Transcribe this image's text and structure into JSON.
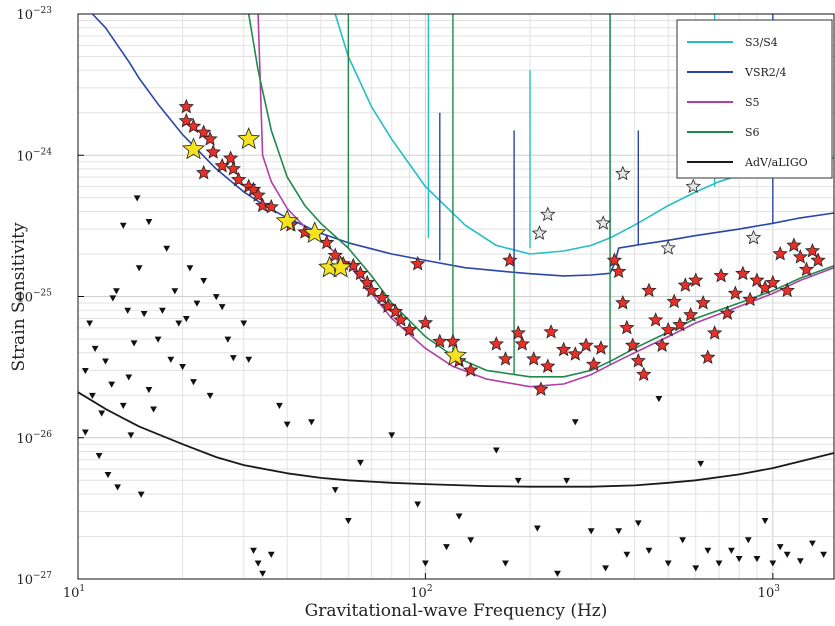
{
  "chart_data": {
    "type": "line",
    "title": "",
    "xlabel": "Gravitational-wave Frequency (Hz)",
    "ylabel": "Strain Sensitivity",
    "xscale": "log",
    "yscale": "log",
    "xlim": [
      10,
      1500
    ],
    "ylim": [
      1e-27,
      1e-23
    ],
    "grid": true,
    "legend_position": "top-right",
    "x_ticks": [
      {
        "value": 10,
        "base": "10",
        "exp": "1"
      },
      {
        "value": 100,
        "base": "10",
        "exp": "2"
      },
      {
        "value": 1000,
        "base": "10",
        "exp": "3"
      }
    ],
    "y_ticks": [
      {
        "value": 1e-27,
        "base": "10",
        "exp": "−27"
      },
      {
        "value": 1e-26,
        "base": "10",
        "exp": "−26"
      },
      {
        "value": 1e-25,
        "base": "10",
        "exp": "−25"
      },
      {
        "value": 1e-24,
        "base": "10",
        "exp": "−24"
      },
      {
        "value": 1e-23,
        "base": "10",
        "exp": "−23"
      }
    ],
    "series": [
      {
        "name": "S3/S4",
        "color": "#22bfc4",
        "x": [
          55,
          60,
          70,
          80,
          100,
          130,
          160,
          200,
          250,
          300,
          340,
          400,
          500,
          600,
          700,
          800,
          1000,
          1200,
          1500
        ],
        "y": [
          1e-23,
          5e-24,
          2.2e-24,
          1.3e-24,
          6e-25,
          3.2e-25,
          2.3e-25,
          2e-25,
          2.1e-25,
          2.3e-25,
          2.6e-25,
          3.2e-25,
          4.4e-25,
          5.5e-25,
          6.5e-25,
          7.2e-25,
          8.2e-25,
          9e-25,
          9.6e-25
        ],
        "lines": [
          {
            "x": 102,
            "y0": 2.6e-25,
            "y1": 1e-23
          },
          {
            "x": 200,
            "y0": 2.2e-25,
            "y1": 4e-24
          },
          {
            "x": 340,
            "y0": 2.6e-25,
            "y1": 1e-23
          },
          {
            "x": 680,
            "y0": 6e-25,
            "y1": 1e-23
          }
        ]
      },
      {
        "name": "VSR2/4",
        "color": "#2a46a8",
        "x": [
          11,
          12,
          13,
          14,
          15,
          17,
          20,
          25,
          30,
          35,
          40,
          50,
          60,
          80,
          100,
          130,
          170,
          200,
          250,
          300,
          340,
          350,
          360,
          400,
          500,
          600,
          800,
          1000,
          1200,
          1500
        ],
        "y": [
          1e-23,
          8e-24,
          6e-24,
          4.6e-24,
          3.5e-24,
          2.3e-24,
          1.4e-24,
          8e-25,
          5.5e-25,
          4.3e-25,
          3.6e-25,
          2.8e-25,
          2.4e-25,
          2e-25,
          1.8e-25,
          1.6e-25,
          1.5e-25,
          1.45e-25,
          1.4e-25,
          1.42e-25,
          1.46e-25,
          1.7e-25,
          2.2e-25,
          2.3e-25,
          2.5e-25,
          2.7e-25,
          3e-25,
          3.3e-25,
          3.6e-25,
          3.9e-25
        ],
        "lines": [
          {
            "x": 110,
            "y0": 1.8e-25,
            "y1": 2e-24
          },
          {
            "x": 180,
            "y0": 1.5e-25,
            "y1": 1.5e-24
          },
          {
            "x": 410,
            "y0": 2.3e-25,
            "y1": 1.5e-24
          },
          {
            "x": 1000,
            "y0": 3.3e-25,
            "y1": 1e-23
          }
        ]
      },
      {
        "name": "S5",
        "color": "#b040a8",
        "x": [
          33,
          34,
          36,
          40,
          45,
          50,
          60,
          70,
          80,
          100,
          120,
          150,
          200,
          250,
          300,
          350,
          400,
          500,
          600,
          800,
          1000,
          1200,
          1500
        ],
        "y": [
          1e-23,
          1e-24,
          6.5e-25,
          4.2e-25,
          3.1e-25,
          2.5e-25,
          1.7e-25,
          1.05e-25,
          7e-26,
          4.3e-26,
          3.2e-26,
          2.6e-26,
          2.3e-26,
          2.4e-26,
          2.8e-26,
          3.4e-26,
          4e-26,
          5.2e-26,
          6.5e-26,
          8.5e-26,
          1.05e-25,
          1.3e-25,
          1.6e-25
        ],
        "lines": []
      },
      {
        "name": "S6",
        "color": "#1f8a4c",
        "x": [
          31,
          33,
          36,
          40,
          45,
          50,
          60,
          70,
          80,
          100,
          120,
          150,
          200,
          250,
          300,
          350,
          400,
          500,
          600,
          800,
          1000,
          1200,
          1500
        ],
        "y": [
          1e-23,
          4e-24,
          1.5e-24,
          7e-25,
          4.4e-25,
          3.3e-25,
          2.2e-25,
          1.4e-25,
          9e-26,
          5.2e-26,
          3.8e-26,
          3e-26,
          2.7e-26,
          2.7e-26,
          3e-26,
          3.6e-26,
          4.3e-26,
          5.6e-26,
          7e-26,
          9e-26,
          1.1e-25,
          1.35e-25,
          1.65e-25
        ],
        "lines": [
          {
            "x": 60,
            "y0": 2.2e-25,
            "y1": 1e-23
          },
          {
            "x": 120,
            "y0": 3.8e-26,
            "y1": 1e-23
          },
          {
            "x": 180,
            "y0": 2.8e-26,
            "y1": 1.6e-25
          },
          {
            "x": 340,
            "y0": 3.3e-26,
            "y1": 1e-23
          }
        ]
      },
      {
        "name": "AdV/aLIGO",
        "color": "#1a1a1a",
        "x": [
          10,
          12,
          15,
          20,
          25,
          30,
          40,
          50,
          60,
          80,
          100,
          150,
          200,
          300,
          400,
          500,
          600,
          800,
          1000,
          1200,
          1500
        ],
        "y": [
          2.1e-26,
          1.6e-26,
          1.2e-26,
          9e-27,
          7.3e-27,
          6.4e-27,
          5.6e-27,
          5.2e-27,
          5e-27,
          4.8e-27,
          4.7e-27,
          4.55e-27,
          4.5e-27,
          4.5e-27,
          4.6e-27,
          4.8e-27,
          5e-27,
          5.5e-27,
          6.1e-27,
          6.8e-27,
          7.8e-27
        ],
        "lines": []
      }
    ],
    "markers": {
      "red_stars": [
        [
          20.5,
          2.2e-24
        ],
        [
          20.5,
          1.75e-24
        ],
        [
          21.5,
          1.6e-24
        ],
        [
          23,
          1.45e-24
        ],
        [
          24,
          1.3e-24
        ],
        [
          24.5,
          1.05e-24
        ],
        [
          23,
          7.5e-25
        ],
        [
          26,
          8.4e-25
        ],
        [
          27.5,
          9.5e-25
        ],
        [
          28,
          8e-25
        ],
        [
          29,
          6.7e-25
        ],
        [
          31,
          6e-25
        ],
        [
          32,
          5.7e-25
        ],
        [
          33,
          5.2e-25
        ],
        [
          34,
          4.4e-25
        ],
        [
          36,
          4.3e-25
        ],
        [
          41,
          3.2e-25
        ],
        [
          45,
          2.85e-25
        ],
        [
          52,
          2.4e-25
        ],
        [
          55,
          1.95e-25
        ],
        [
          58,
          1.7e-25
        ],
        [
          62,
          1.65e-25
        ],
        [
          65,
          1.45e-25
        ],
        [
          68,
          1.25e-25
        ],
        [
          70,
          1.1e-25
        ],
        [
          75,
          9.8e-26
        ],
        [
          78,
          8.5e-26
        ],
        [
          82,
          7.8e-26
        ],
        [
          85,
          6.8e-26
        ],
        [
          90,
          5.8e-26
        ],
        [
          95,
          1.7e-25
        ],
        [
          100,
          6.5e-26
        ],
        [
          110,
          4.8e-26
        ],
        [
          120,
          4.8e-26
        ],
        [
          125,
          3.5e-26
        ],
        [
          135,
          3e-26
        ],
        [
          160,
          4.6e-26
        ],
        [
          170,
          3.6e-26
        ],
        [
          175,
          1.8e-25
        ],
        [
          185,
          5.5e-26
        ],
        [
          190,
          4.6e-26
        ],
        [
          205,
          3.6e-26
        ],
        [
          215,
          2.2e-26
        ],
        [
          225,
          3.2e-26
        ],
        [
          230,
          5.6e-26
        ],
        [
          250,
          4.2e-26
        ],
        [
          270,
          3.9e-26
        ],
        [
          290,
          4.5e-26
        ],
        [
          305,
          3.3e-26
        ],
        [
          320,
          4.3e-26
        ],
        [
          350,
          1.8e-25
        ],
        [
          360,
          1.5e-25
        ],
        [
          370,
          9e-26
        ],
        [
          380,
          6e-26
        ],
        [
          395,
          4.5e-26
        ],
        [
          410,
          3.5e-26
        ],
        [
          425,
          2.8e-26
        ],
        [
          440,
          1.1e-25
        ],
        [
          460,
          6.8e-26
        ],
        [
          480,
          4.5e-26
        ],
        [
          500,
          5.8e-26
        ],
        [
          520,
          9.2e-26
        ],
        [
          540,
          6.3e-26
        ],
        [
          560,
          1.2e-25
        ],
        [
          580,
          7.4e-26
        ],
        [
          600,
          1.3e-25
        ],
        [
          630,
          9e-26
        ],
        [
          650,
          3.7e-26
        ],
        [
          680,
          5.5e-26
        ],
        [
          710,
          1.4e-25
        ],
        [
          740,
          7.6e-26
        ],
        [
          780,
          1.05e-25
        ],
        [
          820,
          1.45e-25
        ],
        [
          860,
          9.5e-26
        ],
        [
          900,
          1.3e-25
        ],
        [
          950,
          1.15e-25
        ],
        [
          1000,
          1.25e-25
        ],
        [
          1050,
          2e-25
        ],
        [
          1100,
          1.1e-25
        ],
        [
          1150,
          2.3e-25
        ],
        [
          1200,
          1.9e-25
        ],
        [
          1250,
          1.55e-25
        ],
        [
          1300,
          2.1e-25
        ],
        [
          1350,
          1.8e-25
        ]
      ],
      "yellow_stars": [
        [
          21.5,
          1.1e-24
        ],
        [
          31,
          1.3e-24
        ],
        [
          40,
          3.4e-25
        ],
        [
          48,
          2.8e-25
        ],
        [
          53,
          1.6e-25
        ],
        [
          57,
          1.6e-25
        ],
        [
          122,
          3.8e-26
        ]
      ],
      "gray_stars": [
        [
          213,
          2.8e-25
        ],
        [
          225,
          3.8e-25
        ],
        [
          325,
          3.3e-25
        ],
        [
          370,
          7.4e-25
        ],
        [
          500,
          2.2e-25
        ],
        [
          590,
          6e-25
        ],
        [
          880,
          2.6e-25
        ]
      ],
      "triangles": [
        [
          10.5,
          3e-26
        ],
        [
          10.5,
          1.1e-26
        ],
        [
          10.8,
          6.5e-26
        ],
        [
          11,
          2e-26
        ],
        [
          11.2,
          4.3e-26
        ],
        [
          11.5,
          7.5e-27
        ],
        [
          11.7,
          1.5e-26
        ],
        [
          12,
          3.5e-26
        ],
        [
          12.2,
          5.5e-27
        ],
        [
          12.5,
          2.4e-26
        ],
        [
          12.6,
          9.8e-26
        ],
        [
          12.9,
          1.1e-25
        ],
        [
          13,
          4.5e-27
        ],
        [
          13.5,
          1.7e-26
        ],
        [
          13.5,
          3.2e-25
        ],
        [
          13.9,
          8e-26
        ],
        [
          14,
          2.7e-26
        ],
        [
          14.2,
          1.05e-26
        ],
        [
          14.5,
          4.7e-26
        ],
        [
          14.8,
          5e-25
        ],
        [
          15,
          1.6e-25
        ],
        [
          15.2,
          4e-27
        ],
        [
          15.5,
          7.6e-26
        ],
        [
          16,
          3.4e-25
        ],
        [
          16,
          2.2e-26
        ],
        [
          16.5,
          1.6e-26
        ],
        [
          17,
          5e-26
        ],
        [
          17.5,
          8e-26
        ],
        [
          18,
          2.2e-25
        ],
        [
          18.5,
          3.6e-26
        ],
        [
          19,
          1.1e-25
        ],
        [
          19.5,
          6.5e-26
        ],
        [
          20,
          3.2e-26
        ],
        [
          20.5,
          7e-26
        ],
        [
          21,
          1.6e-25
        ],
        [
          21.5,
          2.5e-26
        ],
        [
          22,
          9e-26
        ],
        [
          23,
          1.3e-25
        ],
        [
          24,
          2e-26
        ],
        [
          25,
          1e-25
        ],
        [
          26,
          8.5e-26
        ],
        [
          27,
          5e-26
        ],
        [
          28,
          3.7e-26
        ],
        [
          30,
          6.5e-26
        ],
        [
          31,
          3.6e-26
        ],
        [
          32,
          1.6e-27
        ],
        [
          33,
          1.3e-27
        ],
        [
          34,
          1.1e-27
        ],
        [
          36,
          1.5e-27
        ],
        [
          38,
          1.7e-26
        ],
        [
          40,
          1.25e-26
        ],
        [
          47,
          1.3e-26
        ],
        [
          55,
          4.3e-27
        ],
        [
          60,
          2.6e-27
        ],
        [
          65,
          6.7e-27
        ],
        [
          80,
          1.05e-26
        ],
        [
          95,
          3.4e-27
        ],
        [
          100,
          1.3e-27
        ],
        [
          115,
          1.7e-27
        ],
        [
          125,
          2.8e-27
        ],
        [
          135,
          1.9e-27
        ],
        [
          160,
          8.2e-27
        ],
        [
          170,
          1.3e-27
        ],
        [
          185,
          5e-27
        ],
        [
          210,
          2.3e-27
        ],
        [
          240,
          1.1e-27
        ],
        [
          255,
          5e-27
        ],
        [
          270,
          1.3e-26
        ],
        [
          300,
          2.2e-27
        ],
        [
          330,
          1.2e-27
        ],
        [
          360,
          2.2e-27
        ],
        [
          380,
          1.5e-27
        ],
        [
          410,
          2.5e-27
        ],
        [
          440,
          1.6e-27
        ],
        [
          470,
          1.9e-26
        ],
        [
          500,
          1.3e-27
        ],
        [
          550,
          1.9e-27
        ],
        [
          600,
          1.2e-27
        ],
        [
          620,
          6.6e-27
        ],
        [
          650,
          1.6e-27
        ],
        [
          700,
          1.3e-27
        ],
        [
          760,
          1.6e-27
        ],
        [
          800,
          1.4e-27
        ],
        [
          850,
          1.9e-27
        ],
        [
          900,
          1.4e-27
        ],
        [
          950,
          2.6e-27
        ],
        [
          1000,
          1.3e-27
        ],
        [
          1050,
          1.7e-27
        ],
        [
          1100,
          1.5e-27
        ],
        [
          1200,
          1.35e-27
        ],
        [
          1300,
          1.8e-27
        ],
        [
          1400,
          1.5e-27
        ]
      ]
    }
  }
}
